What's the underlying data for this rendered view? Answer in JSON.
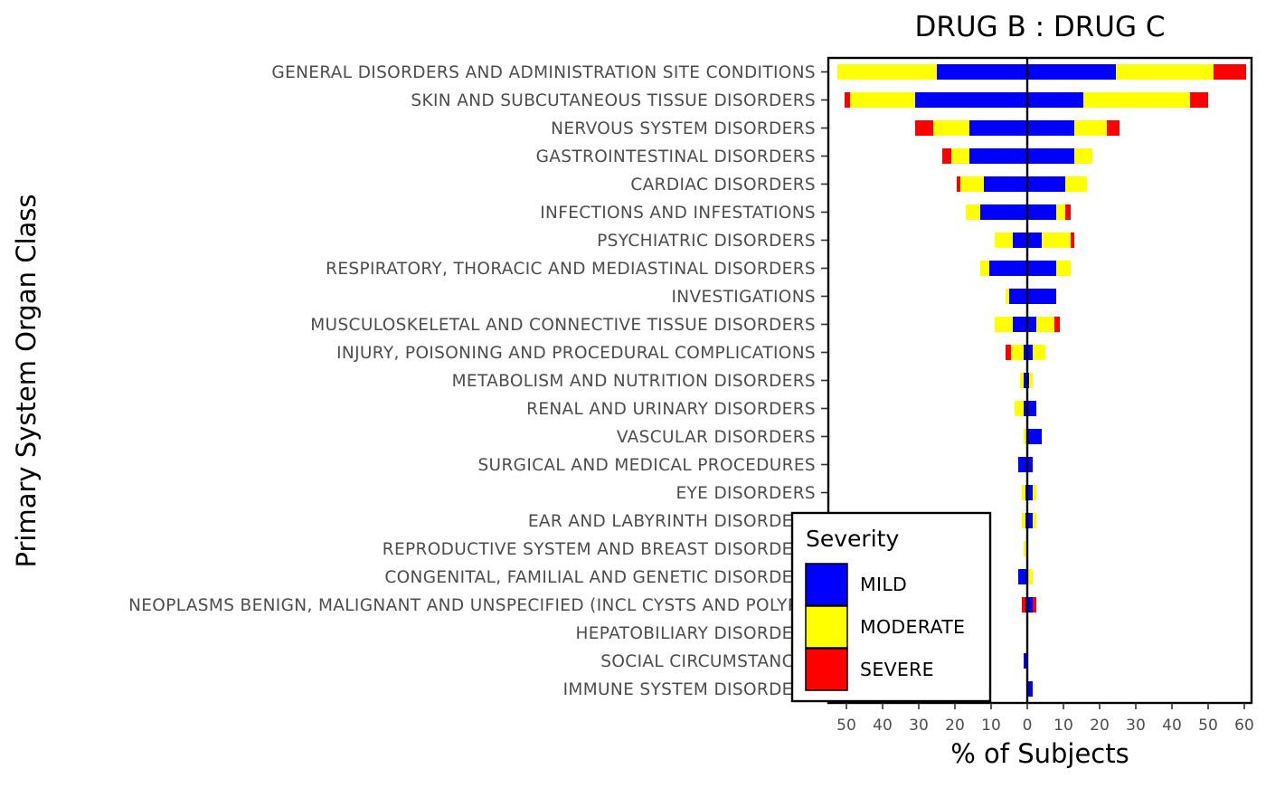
{
  "chart_data": {
    "type": "bar",
    "title": "DRUG B : DRUG C",
    "xlabel": "% of Subjects",
    "ylabel": "Primary System Organ Class",
    "xlim": [
      -55,
      62
    ],
    "x_ticks": [
      -50,
      -40,
      -30,
      -20,
      -10,
      0,
      10,
      20,
      30,
      40,
      50,
      60
    ],
    "x_tick_labels": [
      "50",
      "40",
      "30",
      "20",
      "10",
      "0",
      "10",
      "20",
      "30",
      "40",
      "50",
      "60"
    ],
    "grid": false,
    "legend_position": "bottom-right",
    "legend": {
      "title": "Severity",
      "entries": [
        {
          "name": "MILD",
          "color": "#0000ff"
        },
        {
          "name": "MODERATE",
          "color": "#ffff00"
        },
        {
          "name": "SEVERE",
          "color": "#ff0000"
        }
      ]
    },
    "categories": [
      "GENERAL DISORDERS AND ADMINISTRATION SITE CONDITIONS",
      "SKIN AND SUBCUTANEOUS TISSUE DISORDERS",
      "NERVOUS SYSTEM DISORDERS",
      "GASTROINTESTINAL DISORDERS",
      "CARDIAC DISORDERS",
      "INFECTIONS AND INFESTATIONS",
      "PSYCHIATRIC DISORDERS",
      "RESPIRATORY, THORACIC AND MEDIASTINAL DISORDERS",
      "INVESTIGATIONS",
      "MUSCULOSKELETAL AND CONNECTIVE TISSUE DISORDERS",
      "INJURY, POISONING AND PROCEDURAL COMPLICATIONS",
      "METABOLISM AND NUTRITION DISORDERS",
      "RENAL AND URINARY DISORDERS",
      "VASCULAR DISORDERS",
      "SURGICAL AND MEDICAL PROCEDURES",
      "EYE DISORDERS",
      "EAR AND LABYRINTH DISORDERS",
      "REPRODUCTIVE SYSTEM AND BREAST DISORDERS",
      "CONGENITAL, FAMILIAL AND GENETIC DISORDERS",
      "NEOPLASMS BENIGN, MALIGNANT AND UNSPECIFIED (INCL CYSTS AND POLYPS)",
      "HEPATOBILIARY DISORDERS",
      "SOCIAL CIRCUMSTANCES",
      "IMMUNE SYSTEM DISORDERS"
    ],
    "series": [
      {
        "name": "MILD",
        "color": "#0000ff",
        "drug_b": [
          25,
          31,
          16,
          16,
          12,
          13,
          4,
          10.5,
          5,
          4,
          1,
          1,
          1,
          0,
          2.5,
          0.5,
          0.5,
          0,
          2.5,
          0.5,
          0,
          1,
          0
        ],
        "drug_c": [
          24.5,
          15.5,
          13,
          13,
          10.5,
          8,
          4,
          8,
          8,
          2.5,
          1.5,
          0.5,
          2.5,
          4,
          1.5,
          1.5,
          1.5,
          0,
          0,
          1.5,
          0,
          0,
          1.5
        ]
      },
      {
        "name": "MODERATE",
        "color": "#ffff00",
        "drug_b": [
          27.5,
          18,
          10,
          5,
          6.5,
          4,
          5,
          2.5,
          1,
          5,
          3.5,
          1,
          2.5,
          1,
          0,
          1,
          1,
          1,
          0,
          0,
          0,
          0,
          0
        ],
        "drug_c": [
          27,
          29.5,
          9,
          5,
          6,
          2.5,
          8,
          4,
          0,
          5,
          3.5,
          1,
          0,
          0,
          0,
          1,
          1,
          0,
          1.5,
          0,
          0,
          0,
          0
        ]
      },
      {
        "name": "SEVERE",
        "color": "#ff0000",
        "drug_b": [
          0,
          1.5,
          5,
          2.5,
          1,
          0,
          0,
          0,
          0,
          0,
          1.5,
          0,
          0,
          0,
          0,
          0,
          0,
          0,
          0,
          1,
          0,
          0,
          0
        ],
        "drug_c": [
          9,
          5,
          3.5,
          0,
          0,
          1.5,
          1,
          0,
          0,
          1.5,
          0,
          0,
          0,
          0,
          0,
          0,
          0,
          0,
          0,
          1,
          0,
          0,
          0
        ]
      }
    ]
  }
}
